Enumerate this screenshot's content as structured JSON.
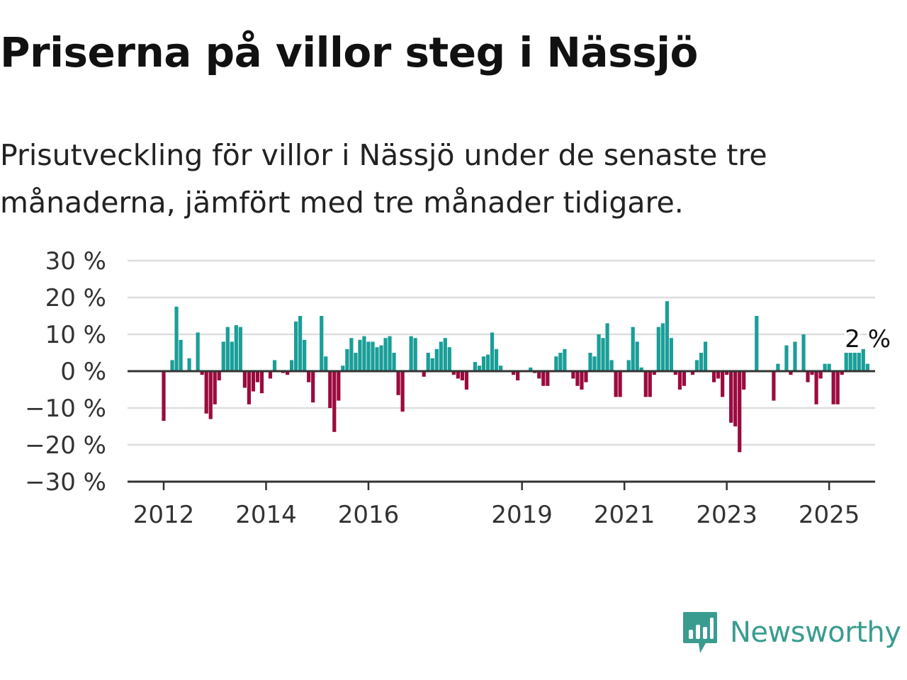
{
  "title": "Priserna på villor steg i Nässjö",
  "subtitle": "Prisutveckling för villor i Nässjö under de senaste tre månaderna, jämfört med tre månader tidigare.",
  "brand": {
    "name": "Newsworthy",
    "color": "#3a9c8f",
    "icon": "bar-chart-speech-bubble-icon"
  },
  "colors": {
    "positive": "#1a9e98",
    "negative": "#9b0a3e",
    "grid": "#dddddd",
    "axis": "#333333"
  },
  "chart_data": {
    "type": "bar",
    "title": "",
    "xlabel": "",
    "ylabel": "",
    "ylim": [
      -30,
      30
    ],
    "y_ticks": [
      30,
      20,
      10,
      0,
      -10,
      -20,
      -30
    ],
    "y_tick_labels": [
      "30 %",
      "20 %",
      "10 %",
      "0 %",
      "−10 %",
      "−20 %",
      "−30 %"
    ],
    "x_ticks": [
      2012,
      2014,
      2016,
      2019,
      2021,
      2023,
      2025
    ],
    "x_tick_labels": [
      "2012",
      "2014",
      "2016",
      "2019",
      "2021",
      "2023",
      "2025"
    ],
    "start": "2012-01",
    "frequency": "monthly",
    "last_label": "2 %",
    "grid": true,
    "values": [
      -13.5,
      0,
      3,
      17.5,
      8.5,
      0,
      3.5,
      0,
      10.5,
      -1,
      -11.5,
      -13,
      -9,
      -2.5,
      8,
      12,
      8,
      12.5,
      12,
      -4.5,
      -9,
      -5.5,
      -3,
      -6,
      0,
      -2,
      3,
      0,
      -0.5,
      -1,
      3,
      13.5,
      15,
      8.5,
      -3,
      -8.5,
      0,
      15,
      4,
      -10,
      -16.5,
      -8,
      1.5,
      6,
      9,
      5,
      8.5,
      9.5,
      8,
      8,
      6.5,
      7,
      9,
      9.5,
      5,
      -6.5,
      -11,
      0,
      9.5,
      9,
      0,
      -1.5,
      5,
      3.5,
      6,
      8,
      9,
      6.5,
      -1,
      -2,
      -2.5,
      -5,
      0,
      2.5,
      1.5,
      4,
      4.5,
      10.5,
      6,
      1.5,
      0,
      0,
      -1,
      -2.5,
      0,
      0,
      1,
      -0.5,
      -2,
      -4,
      -4,
      0,
      4,
      5,
      6,
      0,
      -2,
      -4,
      -5,
      -3,
      5,
      4,
      10,
      9,
      13,
      3,
      -7,
      -7,
      0,
      3,
      12,
      8,
      1,
      -7,
      -7,
      -1,
      12,
      13,
      19,
      9,
      -1,
      -5,
      -4,
      0,
      -1,
      3,
      5,
      8,
      0,
      -3,
      -2,
      -7,
      -1,
      -14,
      -15,
      -22,
      -5,
      0,
      0,
      15,
      0,
      0,
      0,
      -8,
      2,
      0,
      7,
      -1,
      8,
      0,
      10,
      -3,
      -1,
      -9,
      -2,
      2,
      2,
      -9,
      -9,
      -1,
      5,
      5,
      5,
      5,
      6,
      2
    ]
  }
}
